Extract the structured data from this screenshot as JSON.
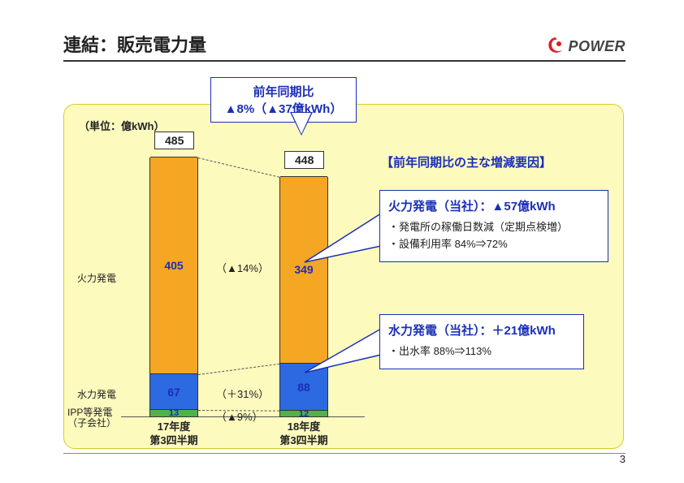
{
  "header": {
    "title": "連結：販売電力量",
    "logo_text": "POWER"
  },
  "panel": {
    "unit_label": "（単位：億kWh）",
    "background_color": "#fdfabe",
    "border_color": "#d6ce2a"
  },
  "top_callout": {
    "line1": "前年同期比",
    "line2": "▲8%（▲37億kWh）",
    "border_color": "#1a2fb8",
    "text_color": "#1a2fb8"
  },
  "chart": {
    "type": "stacked-bar",
    "categories": [
      "17年度\n第3四半期",
      "18年度\n第3四半期"
    ],
    "row_labels": [
      "火力発電",
      "水力発電",
      "IPP等発電\n（子会社）"
    ],
    "totals": [
      485,
      448
    ],
    "ymax": 500,
    "segments": [
      {
        "name": "ipp",
        "values": [
          13,
          12
        ],
        "color": "#51b14c"
      },
      {
        "name": "hydro",
        "values": [
          67,
          88
        ],
        "color": "#2d69e0"
      },
      {
        "name": "thermal",
        "values": [
          405,
          349
        ],
        "color": "#f5a623"
      }
    ],
    "pct_labels": [
      {
        "text": "（▲14%）",
        "y_ref": "thermal"
      },
      {
        "text": "（＋31%）",
        "y_ref": "hydro"
      },
      {
        "text": "（▲9%）",
        "y_ref": "ipp"
      }
    ],
    "value_color": "#1a2fb8",
    "bar_border_color": "#333333"
  },
  "right": {
    "factors_title": "【前年同期比の主な増減要因】",
    "callout1": {
      "title": "火力発電（当社）：▲57億kWh",
      "lines": [
        "・発電所の稼働日数減（定期点検増）",
        "・設備利用率 84%⇒72%"
      ]
    },
    "callout2": {
      "title": "水力発電（当社）：＋21億kWh",
      "lines": [
        "・出水率 88%⇒113%"
      ]
    }
  },
  "page_number": "3"
}
